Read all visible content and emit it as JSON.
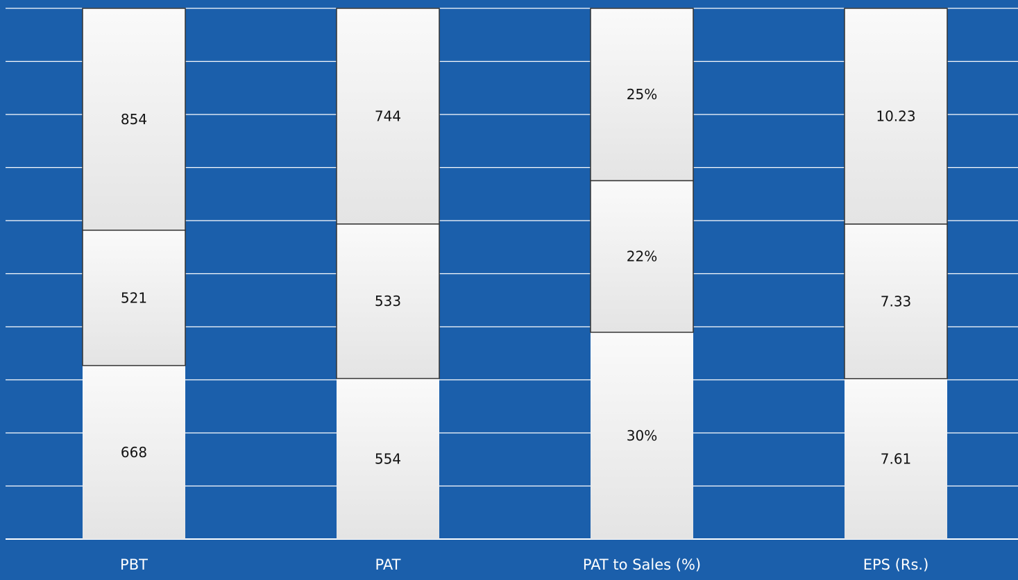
{
  "colors": {
    "background": "#1b5fab",
    "gridline": "#ffffff",
    "segment_fill_light": "#fafafa",
    "segment_fill_dark": "#e4e4e4",
    "segment_border": "#333333",
    "label_text": "#111111",
    "category_text": "#ffffff"
  },
  "chart_data": {
    "type": "bar",
    "stacked": true,
    "normalized": true,
    "title": "",
    "xlabel": "",
    "ylabel": "",
    "ylim": [
      0,
      100
    ],
    "grid": true,
    "legend": "none",
    "categories": [
      "PBT",
      "PAT",
      "PAT to Sales (%)",
      "EPS (Rs.)"
    ],
    "series": [
      {
        "values": [
          668,
          554,
          30,
          7.61
        ],
        "labels": [
          "668",
          "554",
          "30%",
          "7.61"
        ]
      },
      {
        "values": [
          521,
          533,
          22,
          7.33
        ],
        "labels": [
          "521",
          "533",
          "22%",
          "7.33"
        ]
      },
      {
        "values": [
          854,
          744,
          25,
          10.23
        ],
        "labels": [
          "854",
          "744",
          "25%",
          "10.23"
        ]
      }
    ]
  }
}
